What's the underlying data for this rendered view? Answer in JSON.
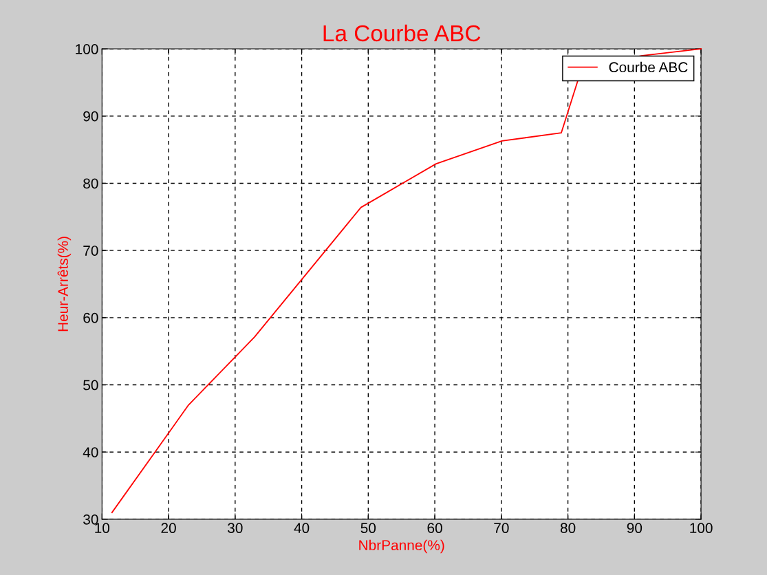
{
  "chart_data": {
    "type": "line",
    "title": "La Courbe ABC",
    "xlabel": "NbrPanne(%)",
    "ylabel": "Heur-Arrêts(%)",
    "x": [
      11.5,
      23.0,
      32.9,
      48.9,
      60.2,
      70.1,
      79.0,
      82.1,
      91.2,
      100
    ],
    "series": [
      {
        "name": "Courbe ABC",
        "color": "#ff0000",
        "values": [
          31.0,
          47.0,
          57.1,
          76.4,
          82.9,
          86.3,
          87.5,
          97.2,
          99.0,
          100
        ]
      }
    ],
    "xlim": [
      10,
      100
    ],
    "ylim": [
      30,
      100
    ],
    "xticks": [
      10,
      20,
      30,
      40,
      50,
      60,
      70,
      80,
      90,
      100
    ],
    "yticks": [
      30,
      40,
      50,
      60,
      70,
      80,
      90,
      100
    ],
    "grid": true,
    "legend": "top right",
    "line_style": "solid",
    "marker": "none"
  }
}
